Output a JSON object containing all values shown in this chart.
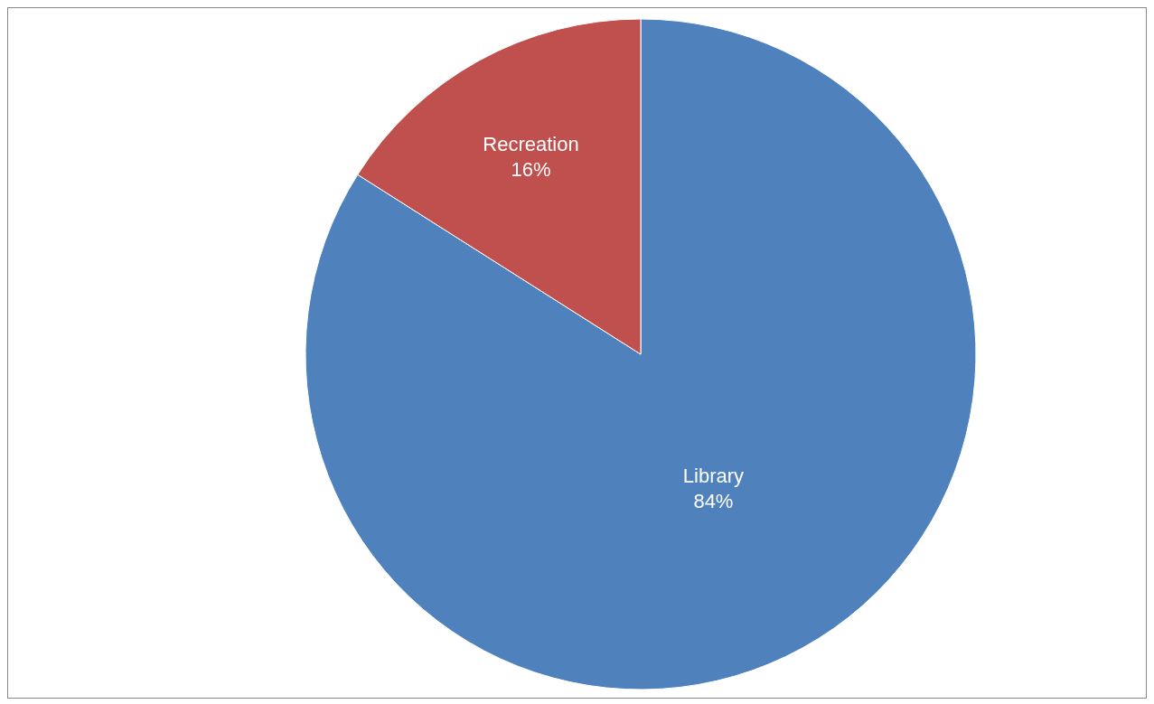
{
  "chart_data": {
    "type": "pie",
    "categories": [
      "Library",
      "Recreation"
    ],
    "values": [
      84,
      16
    ],
    "colors": [
      "#4f81bd",
      "#c0504d"
    ],
    "value_labels": [
      "84%",
      "16%"
    ],
    "legend": false
  }
}
